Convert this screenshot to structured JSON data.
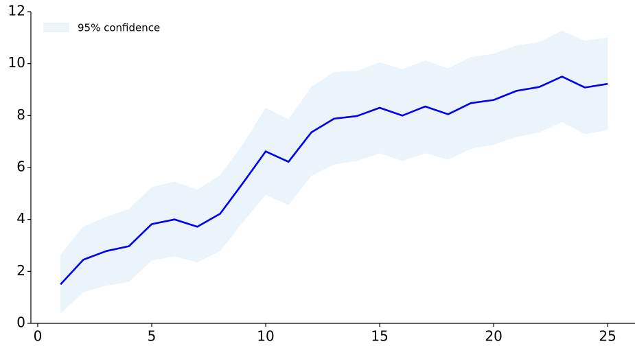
{
  "chart_data": {
    "type": "line",
    "x": [
      1,
      2,
      3,
      4,
      5,
      6,
      7,
      8,
      9,
      10,
      11,
      12,
      13,
      14,
      15,
      16,
      17,
      18,
      19,
      20,
      21,
      22,
      23,
      24,
      25
    ],
    "series": [
      {
        "color": "#0000ee",
        "values": [
          1.5,
          2.45,
          2.78,
          2.97,
          3.82,
          4.0,
          3.72,
          4.22,
          5.4,
          6.62,
          6.22,
          7.35,
          7.88,
          7.98,
          8.3,
          8.0,
          8.35,
          8.05,
          8.48,
          8.6,
          8.95,
          9.1,
          9.5,
          9.08,
          9.22
        ]
      }
    ],
    "band": {
      "name": "95% confidence",
      "color": "#eaf4fa",
      "upper": [
        2.65,
        3.72,
        4.1,
        4.4,
        5.25,
        5.45,
        5.15,
        5.7,
        6.9,
        8.3,
        7.85,
        9.1,
        9.68,
        9.72,
        10.05,
        9.78,
        10.12,
        9.82,
        10.25,
        10.38,
        10.7,
        10.82,
        11.27,
        10.88,
        11.0
      ],
      "lower": [
        0.38,
        1.2,
        1.45,
        1.6,
        2.42,
        2.58,
        2.35,
        2.78,
        3.9,
        4.95,
        4.55,
        5.68,
        6.12,
        6.25,
        6.55,
        6.25,
        6.55,
        6.3,
        6.72,
        6.88,
        7.18,
        7.35,
        7.75,
        7.28,
        7.45
      ]
    },
    "xlim": [
      -0.3,
      26.2
    ],
    "ylim": [
      0,
      12
    ],
    "xticks": [
      0,
      5,
      10,
      15,
      20,
      25
    ],
    "yticks": [
      0,
      2,
      4,
      6,
      8,
      10,
      12
    ],
    "legend": "upper left",
    "grid": false
  }
}
